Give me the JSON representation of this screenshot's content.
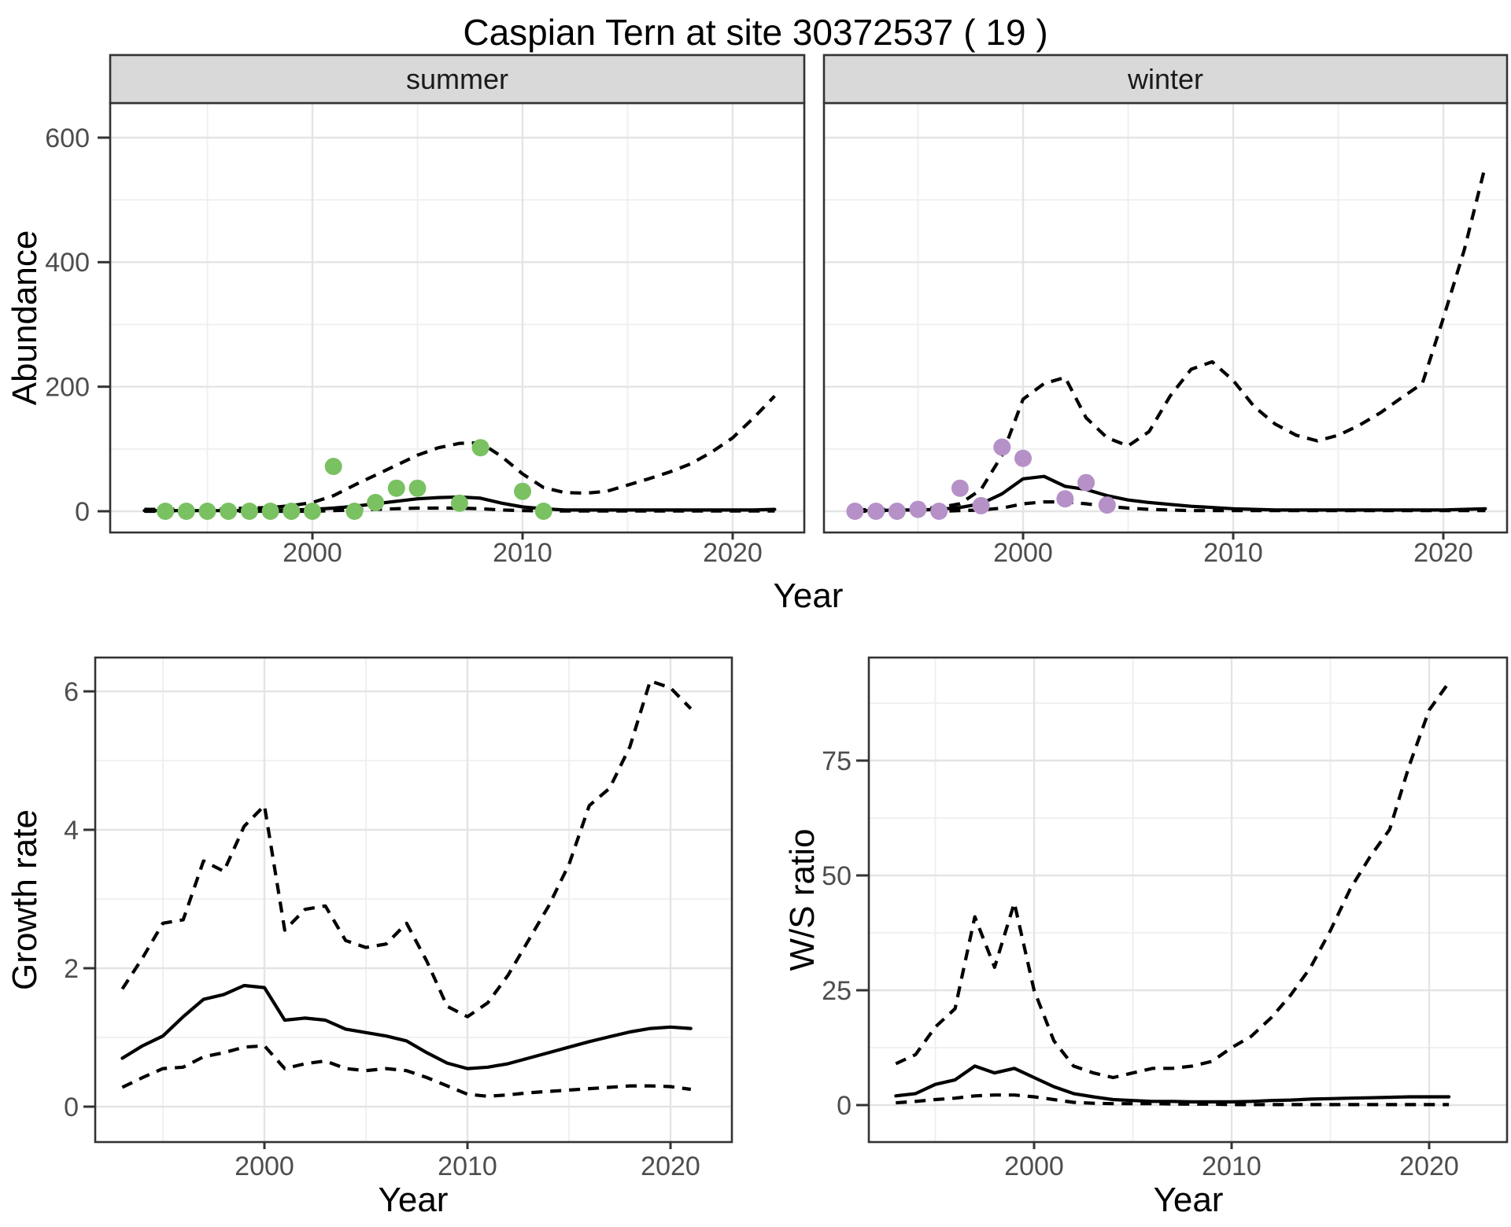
{
  "title": "Caspian Tern at site 30372537 ( 19 )",
  "labels": {
    "y_top": "Abundance",
    "x_top": "Year",
    "y_bottom_left": "Growth rate",
    "x_bottom_left": "Year",
    "y_bottom_right": "W/S ratio",
    "x_bottom_right": "Year"
  },
  "colors": {
    "summer_point": "#7ac162",
    "winter_point": "#b591c8",
    "line": "#000000",
    "strip_bg": "#d9d9d9",
    "strip_text": "#1a1a1a",
    "panel_border": "#333333",
    "grid_major": "#e4e4e4",
    "grid_minor": "#efefef",
    "axis_text": "#4d4d4d",
    "tick_mark": "#333333"
  },
  "chart_data": [
    {
      "type": "line",
      "facet_label": "summer",
      "title": "",
      "xlabel": "Year",
      "ylabel": "Abundance",
      "x_ticks": [
        2000,
        2010,
        2020
      ],
      "x_minor": [
        1995,
        2005,
        2015
      ],
      "y_ticks": [
        0,
        200,
        400,
        600
      ],
      "y_minor": [
        100,
        300,
        500
      ],
      "xlim": [
        1990.4,
        2023.4
      ],
      "ylim": [
        -34,
        655
      ],
      "grid": true,
      "legend": "none",
      "series": [
        {
          "name": "fit",
          "style": "solid",
          "x": [
            1992,
            1993,
            1994,
            1995,
            1996,
            1997,
            1998,
            1999,
            2000,
            2001,
            2002,
            2003,
            2004,
            2005,
            2006,
            2007,
            2008,
            2009,
            2010,
            2011,
            2012,
            2013,
            2014,
            2015,
            2016,
            2017,
            2018,
            2019,
            2020,
            2021,
            2022
          ],
          "y": [
            1,
            1,
            1,
            1,
            1,
            1,
            2,
            2,
            3,
            5,
            8,
            12,
            16,
            20,
            22,
            23,
            21,
            13,
            7,
            4,
            2,
            2,
            2,
            2,
            2,
            2,
            2,
            2,
            2,
            2,
            3
          ]
        },
        {
          "name": "upper_ci",
          "style": "dashed",
          "x": [
            1992,
            1993,
            1994,
            1995,
            1996,
            1997,
            1998,
            1999,
            2000,
            2001,
            2002,
            2003,
            2004,
            2005,
            2006,
            2007,
            2008,
            2009,
            2010,
            2011,
            2012,
            2013,
            2014,
            2015,
            2016,
            2017,
            2018,
            2019,
            2020,
            2021,
            2022
          ],
          "y": [
            3,
            3,
            3,
            3,
            4,
            5,
            6,
            9,
            14,
            25,
            42,
            58,
            74,
            90,
            102,
            109,
            110,
            88,
            60,
            38,
            30,
            29,
            32,
            42,
            52,
            63,
            76,
            95,
            118,
            150,
            185
          ]
        },
        {
          "name": "lower_ci",
          "style": "dashed",
          "x": [
            1992,
            1993,
            1994,
            1995,
            1996,
            1997,
            1998,
            1999,
            2000,
            2001,
            2002,
            2003,
            2004,
            2005,
            2006,
            2007,
            2008,
            2009,
            2010,
            2011,
            2012,
            2013,
            2014,
            2015,
            2016,
            2017,
            2018,
            2019,
            2020,
            2021,
            2022
          ],
          "y": [
            0,
            0,
            0,
            0,
            0,
            0,
            0,
            0,
            0,
            1,
            2,
            3,
            4,
            5,
            5,
            5,
            4,
            2,
            1,
            0.5,
            0.5,
            0.5,
            0.5,
            0.5,
            0.5,
            0.5,
            0.5,
            0.5,
            0.5,
            0.5,
            0.5
          ]
        }
      ],
      "points": {
        "name": "observed_summer",
        "color_key": "summer_point",
        "x": [
          1993,
          1994,
          1995,
          1996,
          1997,
          1998,
          1999,
          2000,
          2001,
          2002,
          2003,
          2004,
          2005,
          2007,
          2008,
          2010,
          2011
        ],
        "y": [
          0,
          0,
          0,
          0,
          0,
          0,
          0,
          0,
          72,
          0,
          14,
          37,
          37,
          13,
          102,
          32,
          0
        ]
      }
    },
    {
      "type": "line",
      "facet_label": "winter",
      "title": "",
      "xlabel": "",
      "ylabel": "",
      "x_ticks": [
        2000,
        2010,
        2020
      ],
      "x_minor": [
        1995,
        2005,
        2015
      ],
      "y_ticks": [
        0,
        200,
        400,
        600
      ],
      "y_minor": [
        100,
        300,
        500
      ],
      "xlim": [
        1990.5,
        2023.5
      ],
      "ylim": [
        -34,
        655
      ],
      "grid": true,
      "legend": "none",
      "series": [
        {
          "name": "fit",
          "style": "solid",
          "x": [
            1992,
            1993,
            1994,
            1995,
            1996,
            1997,
            1998,
            1999,
            2000,
            2001,
            2002,
            2003,
            2004,
            2005,
            2006,
            2007,
            2008,
            2009,
            2010,
            2011,
            2012,
            2013,
            2014,
            2015,
            2016,
            2017,
            2018,
            2019,
            2020,
            2021,
            2022
          ],
          "y": [
            1,
            1,
            2,
            2,
            3,
            6,
            12,
            28,
            52,
            56,
            40,
            35,
            25,
            18,
            14,
            11,
            8,
            6,
            4,
            3,
            2,
            2,
            2,
            2,
            2,
            2,
            2,
            2,
            2,
            3,
            4
          ]
        },
        {
          "name": "upper_ci",
          "style": "dashed",
          "x": [
            1992,
            1993,
            1994,
            1995,
            1996,
            1997,
            1998,
            1999,
            2000,
            2001,
            2002,
            2003,
            2004,
            2005,
            2006,
            2007,
            2008,
            2009,
            2010,
            2011,
            2012,
            2013,
            2014,
            2015,
            2016,
            2017,
            2018,
            2019,
            2020,
            2021,
            2022
          ],
          "y": [
            2,
            3,
            3,
            4,
            6,
            12,
            35,
            90,
            180,
            205,
            215,
            150,
            118,
            105,
            128,
            185,
            228,
            240,
            210,
            168,
            140,
            122,
            113,
            122,
            138,
            158,
            182,
            205,
            310,
            420,
            555
          ]
        },
        {
          "name": "lower_ci",
          "style": "dashed",
          "x": [
            1992,
            1993,
            1994,
            1995,
            1996,
            1997,
            1998,
            1999,
            2000,
            2001,
            2002,
            2003,
            2004,
            2005,
            2006,
            2007,
            2008,
            2009,
            2010,
            2011,
            2012,
            2013,
            2014,
            2015,
            2016,
            2017,
            2018,
            2019,
            2020,
            2021,
            2022
          ],
          "y": [
            0,
            0,
            0,
            0,
            0,
            1,
            2,
            5,
            12,
            15,
            15,
            12,
            8,
            5,
            3,
            2,
            1,
            1,
            1,
            1,
            1,
            1,
            1,
            1,
            1,
            1,
            1,
            1,
            1,
            1,
            1
          ]
        }
      ],
      "points": {
        "name": "observed_winter",
        "color_key": "winter_point",
        "x": [
          1992,
          1993,
          1994,
          1995,
          1996,
          1997,
          1998,
          1999,
          2000,
          2002,
          2003,
          2004
        ],
        "y": [
          0,
          0,
          0,
          3,
          0,
          37,
          9,
          103,
          85,
          20,
          46,
          10
        ]
      }
    },
    {
      "type": "line",
      "facet_label": "",
      "title": "",
      "xlabel": "Year",
      "ylabel": "Growth rate",
      "x_ticks": [
        2000,
        2010,
        2020
      ],
      "x_minor": [
        1995,
        2005,
        2015
      ],
      "y_ticks": [
        0,
        2,
        4,
        6
      ],
      "y_minor": [
        1,
        3,
        5
      ],
      "xlim": [
        1991.7,
        2023.0
      ],
      "ylim": [
        -0.5,
        6.5
      ],
      "grid": true,
      "legend": "none",
      "series": [
        {
          "name": "fit",
          "style": "solid",
          "x": [
            1993,
            1994,
            1995,
            1996,
            1997,
            1998,
            1999,
            2000,
            2001,
            2002,
            2003,
            2004,
            2005,
            2006,
            2007,
            2008,
            2009,
            2010,
            2011,
            2012,
            2013,
            2014,
            2015,
            2016,
            2017,
            2018,
            2019,
            2020,
            2021
          ],
          "y": [
            0.7,
            0.88,
            1.02,
            1.3,
            1.55,
            1.62,
            1.75,
            1.72,
            1.25,
            1.28,
            1.25,
            1.12,
            1.07,
            1.02,
            0.95,
            0.78,
            0.63,
            0.55,
            0.57,
            0.62,
            0.7,
            0.78,
            0.86,
            0.94,
            1.01,
            1.08,
            1.13,
            1.15,
            1.13
          ]
        },
        {
          "name": "upper_ci",
          "style": "dashed",
          "x": [
            1993,
            1994,
            1995,
            1996,
            1997,
            1998,
            1999,
            2000,
            2001,
            2002,
            2003,
            2004,
            2005,
            2006,
            2007,
            2008,
            2009,
            2010,
            2011,
            2012,
            2013,
            2014,
            2015,
            2016,
            2017,
            2018,
            2019,
            2020,
            2021
          ],
          "y": [
            1.7,
            2.15,
            2.65,
            2.7,
            3.55,
            3.4,
            4.05,
            4.35,
            2.55,
            2.85,
            2.9,
            2.4,
            2.3,
            2.35,
            2.65,
            2.1,
            1.45,
            1.3,
            1.5,
            1.9,
            2.4,
            2.9,
            3.5,
            4.35,
            4.6,
            5.2,
            6.15,
            6.05,
            5.75
          ]
        },
        {
          "name": "lower_ci",
          "style": "dashed",
          "x": [
            1993,
            1994,
            1995,
            1996,
            1997,
            1998,
            1999,
            2000,
            2001,
            2002,
            2003,
            2004,
            2005,
            2006,
            2007,
            2008,
            2009,
            2010,
            2011,
            2012,
            2013,
            2014,
            2015,
            2016,
            2017,
            2018,
            2019,
            2020,
            2021
          ],
          "y": [
            0.28,
            0.42,
            0.55,
            0.57,
            0.72,
            0.78,
            0.86,
            0.88,
            0.55,
            0.62,
            0.66,
            0.55,
            0.52,
            0.55,
            0.52,
            0.42,
            0.3,
            0.18,
            0.15,
            0.17,
            0.2,
            0.22,
            0.24,
            0.26,
            0.28,
            0.3,
            0.3,
            0.29,
            0.25
          ]
        }
      ],
      "points": null
    },
    {
      "type": "line",
      "facet_label": "",
      "title": "",
      "xlabel": "Year",
      "ylabel": "W/S ratio",
      "x_ticks": [
        2000,
        2010,
        2020
      ],
      "x_minor": [
        1995,
        2005,
        2015
      ],
      "y_ticks": [
        0,
        25,
        50,
        75
      ],
      "y_minor": [
        12.5,
        37.5,
        62.5,
        87.5
      ],
      "xlim": [
        1991.6,
        2023.2
      ],
      "ylim": [
        -6,
        97
      ],
      "grid": true,
      "legend": "none",
      "series": [
        {
          "name": "fit",
          "style": "solid",
          "x": [
            1993,
            1994,
            1995,
            1996,
            1997,
            1998,
            1999,
            2000,
            2001,
            2002,
            2003,
            2004,
            2005,
            2006,
            2007,
            2008,
            2009,
            2010,
            2011,
            2012,
            2013,
            2014,
            2015,
            2016,
            2017,
            2018,
            2019,
            2020,
            2021
          ],
          "y": [
            2.0,
            2.5,
            4.5,
            5.5,
            8.5,
            7.0,
            8.0,
            6.0,
            4.0,
            2.5,
            1.8,
            1.2,
            1.0,
            0.8,
            0.8,
            0.7,
            0.7,
            0.7,
            0.8,
            1.0,
            1.1,
            1.3,
            1.4,
            1.5,
            1.6,
            1.7,
            1.8,
            1.8,
            1.8
          ]
        },
        {
          "name": "upper_ci",
          "style": "dashed",
          "x": [
            1993,
            1994,
            1995,
            1996,
            1997,
            1998,
            1999,
            2000,
            2001,
            2002,
            2003,
            2004,
            2005,
            2006,
            2007,
            2008,
            2009,
            2010,
            2011,
            2012,
            2013,
            2014,
            2015,
            2016,
            2017,
            2018,
            2019,
            2020,
            2021
          ],
          "y": [
            9,
            11,
            17,
            21,
            41,
            30,
            44,
            25,
            14,
            8.5,
            7,
            6,
            7,
            8,
            8,
            8.5,
            9.5,
            12.5,
            15,
            19,
            24,
            30,
            38,
            47,
            54,
            60,
            74,
            86,
            92
          ]
        },
        {
          "name": "lower_ci",
          "style": "dashed",
          "x": [
            1993,
            1994,
            1995,
            1996,
            1997,
            1998,
            1999,
            2000,
            2001,
            2002,
            2003,
            2004,
            2005,
            2006,
            2007,
            2008,
            2009,
            2010,
            2011,
            2012,
            2013,
            2014,
            2015,
            2016,
            2017,
            2018,
            2019,
            2020,
            2021
          ],
          "y": [
            0.5,
            0.8,
            1.2,
            1.5,
            2.0,
            2.2,
            2.2,
            1.8,
            1.2,
            0.6,
            0.4,
            0.3,
            0.3,
            0.3,
            0.25,
            0.2,
            0.2,
            0.1,
            0.1,
            0.1,
            0.1,
            0.1,
            0.1,
            0.1,
            0.1,
            0.1,
            0.1,
            0.1,
            0.1
          ]
        }
      ],
      "points": null
    }
  ]
}
